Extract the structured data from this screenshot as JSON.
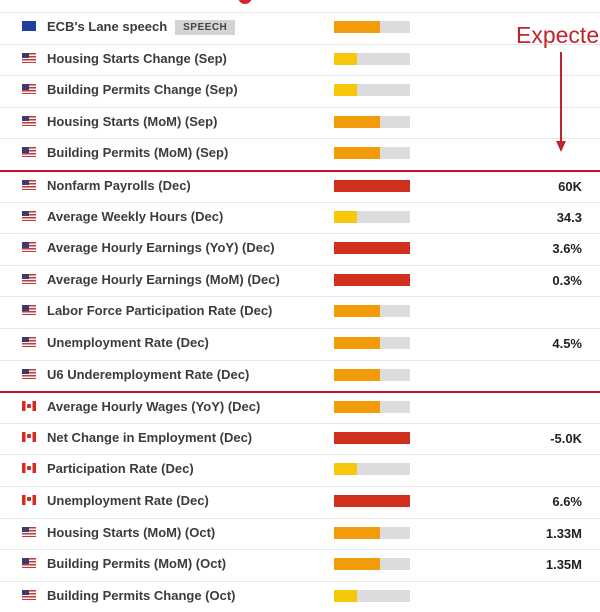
{
  "annotation": {
    "text": "Expecte",
    "color": "#c0242d"
  },
  "colors": {
    "high": "#d1301f",
    "medium": "#f29c0c",
    "low": "#f7c80a",
    "track": "#dcdcdc",
    "separator": "#c8102e"
  },
  "rows": [
    {
      "flag": "eu",
      "name": "ECB's Lane speech",
      "badge": "SPEECH",
      "impact": "medium",
      "expected": ""
    },
    {
      "flag": "us",
      "name": "Housing Starts Change (Sep)",
      "impact": "low",
      "expected": ""
    },
    {
      "flag": "us",
      "name": "Building Permits Change (Sep)",
      "impact": "low",
      "expected": ""
    },
    {
      "flag": "us",
      "name": "Housing Starts (MoM) (Sep)",
      "impact": "medium",
      "expected": ""
    },
    {
      "flag": "us",
      "name": "Building Permits (MoM) (Sep)",
      "impact": "medium",
      "expected": ""
    },
    {
      "flag": "us",
      "name": "Nonfarm Payrolls (Dec)",
      "impact": "high",
      "expected": "60K",
      "separator": true
    },
    {
      "flag": "us",
      "name": "Average Weekly Hours (Dec)",
      "impact": "low",
      "expected": "34.3"
    },
    {
      "flag": "us",
      "name": "Average Hourly Earnings (YoY) (Dec)",
      "impact": "high",
      "expected": "3.6%"
    },
    {
      "flag": "us",
      "name": "Average Hourly Earnings (MoM) (Dec)",
      "impact": "high",
      "expected": "0.3%"
    },
    {
      "flag": "us",
      "name": "Labor Force Participation Rate (Dec)",
      "impact": "medium",
      "expected": ""
    },
    {
      "flag": "us",
      "name": "Unemployment Rate (Dec)",
      "impact": "medium",
      "expected": "4.5%"
    },
    {
      "flag": "us",
      "name": "U6 Underemployment Rate (Dec)",
      "impact": "medium",
      "expected": ""
    },
    {
      "flag": "ca",
      "name": "Average Hourly Wages (YoY) (Dec)",
      "impact": "medium",
      "expected": "",
      "separator": true
    },
    {
      "flag": "ca",
      "name": "Net Change in Employment (Dec)",
      "impact": "high",
      "expected": "-5.0K"
    },
    {
      "flag": "ca",
      "name": "Participation Rate (Dec)",
      "impact": "low",
      "expected": ""
    },
    {
      "flag": "ca",
      "name": "Unemployment Rate (Dec)",
      "impact": "high",
      "expected": "6.6%"
    },
    {
      "flag": "us",
      "name": "Housing Starts (MoM) (Oct)",
      "impact": "medium",
      "expected": "1.33M"
    },
    {
      "flag": "us",
      "name": "Building Permits (MoM) (Oct)",
      "impact": "medium",
      "expected": "1.35M"
    },
    {
      "flag": "us",
      "name": "Building Permits Change (Oct)",
      "impact": "low",
      "expected": ""
    }
  ]
}
